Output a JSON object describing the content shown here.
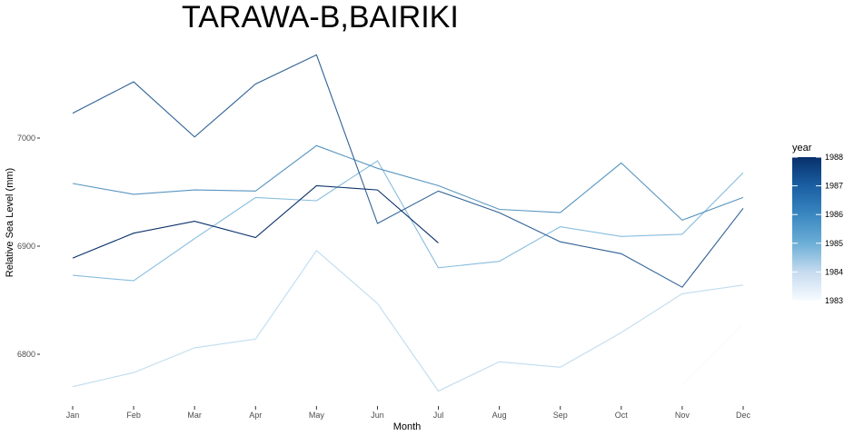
{
  "chart_data": {
    "type": "line",
    "title": "TARAWA-B,BAIRIKI",
    "xlabel": "Month",
    "ylabel": "Relative Sea Level (mm)",
    "categories": [
      "Jan",
      "Feb",
      "Mar",
      "Apr",
      "May",
      "Jun",
      "Jul",
      "Aug",
      "Sep",
      "Oct",
      "Nov",
      "Dec"
    ],
    "ylim": [
      6750,
      7080
    ],
    "yticks": [
      6800,
      6900,
      7000
    ],
    "grid": false,
    "legend": {
      "title": "year",
      "placement": "right",
      "ticks": [
        1983,
        1984,
        1985,
        1986,
        1987,
        1988
      ],
      "range": [
        1983,
        1988
      ]
    },
    "color_scale": {
      "low": "#f7fbff",
      "mid": "#6baed6",
      "high": "#08306b"
    },
    "series": [
      {
        "year": 1983,
        "values": [
          null,
          null,
          null,
          null,
          null,
          null,
          null,
          null,
          null,
          null,
          6772,
          6828
        ]
      },
      {
        "year": 1984,
        "values": [
          6770,
          6783,
          6806,
          6814,
          6896,
          6847,
          6766,
          6793,
          6788,
          6820,
          6856,
          6864
        ]
      },
      {
        "year": 1985,
        "values": [
          6873,
          6868,
          6907,
          6945,
          6942,
          6979,
          6880,
          6886,
          6918,
          6909,
          6911,
          6968
        ]
      },
      {
        "year": 1986,
        "values": [
          6958,
          6948,
          6952,
          6951,
          6993,
          6972,
          6956,
          6934,
          6931,
          6977,
          6924,
          6945
        ]
      },
      {
        "year": 1987,
        "values": [
          7023,
          7052,
          7001,
          7050,
          7077,
          6921,
          6951,
          6931,
          6904,
          6893,
          6862,
          6935
        ]
      },
      {
        "year": 1988,
        "values": [
          6889,
          6912,
          6923,
          6908,
          6956,
          6952,
          6903,
          null,
          null,
          null,
          null,
          null
        ]
      }
    ]
  }
}
